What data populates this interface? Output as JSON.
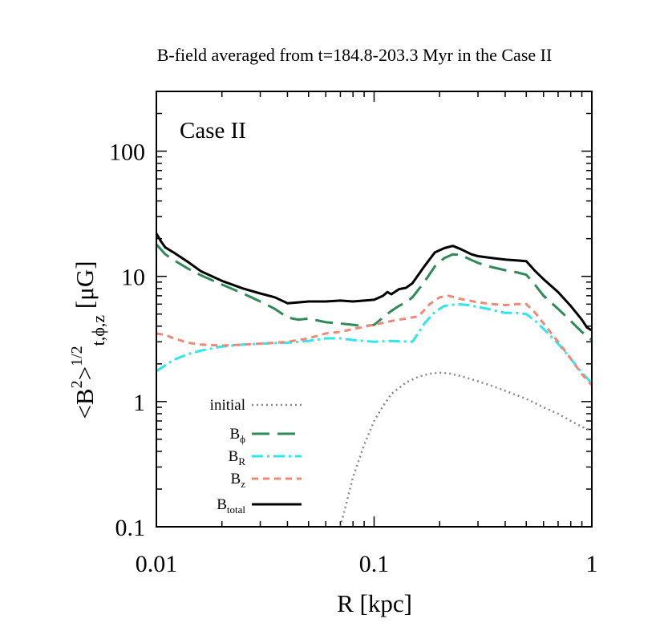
{
  "chart_data": {
    "type": "line",
    "title": "B-field averaged from t=184.8-203.3 Myr in the Case II",
    "panel_label": "Case II",
    "xlabel": "R [kpc]",
    "ylabel": {
      "base": "<B",
      "sq": "2",
      "mid": ">",
      "exp": "1/2",
      "sub": "t,ϕ,z",
      "unit": " [μG]"
    },
    "xscale": "log",
    "yscale": "log",
    "xlim": [
      0.01,
      1
    ],
    "ylim": [
      0.1,
      300
    ],
    "x_ticks": [
      {
        "v": 0.01,
        "label": "0.01"
      },
      {
        "v": 0.1,
        "label": "0.1"
      },
      {
        "v": 1,
        "label": "1"
      }
    ],
    "y_ticks": [
      {
        "v": 0.1,
        "label": "0.1"
      },
      {
        "v": 1,
        "label": "1"
      },
      {
        "v": 10,
        "label": "10"
      },
      {
        "v": 100,
        "label": "100"
      }
    ],
    "grid": false,
    "legend_position": "bottom-left",
    "series": [
      {
        "key": "initial",
        "name": "initial",
        "name_sub": "",
        "color": "#888888",
        "dash": "2,4",
        "width": 2.5,
        "x": [
          0.07,
          0.075,
          0.08,
          0.09,
          0.1,
          0.11,
          0.12,
          0.14,
          0.16,
          0.18,
          0.2,
          0.22,
          0.25,
          0.3,
          0.35,
          0.4,
          0.5,
          0.6,
          0.7,
          0.8,
          0.9,
          1.0
        ],
        "y": [
          0.1,
          0.16,
          0.25,
          0.45,
          0.7,
          0.92,
          1.15,
          1.42,
          1.58,
          1.67,
          1.7,
          1.68,
          1.6,
          1.45,
          1.33,
          1.22,
          1.05,
          0.9,
          0.8,
          0.7,
          0.63,
          0.58
        ]
      },
      {
        "key": "bphi",
        "name": "B",
        "name_sub": "ϕ",
        "color": "#2e8b57",
        "dash": "22,10",
        "width": 3,
        "x": [
          0.01,
          0.011,
          0.012,
          0.014,
          0.016,
          0.02,
          0.025,
          0.03,
          0.035,
          0.04,
          0.045,
          0.05,
          0.06,
          0.07,
          0.08,
          0.09,
          0.1,
          0.11,
          0.12,
          0.13,
          0.14,
          0.15,
          0.17,
          0.19,
          0.21,
          0.23,
          0.25,
          0.28,
          0.3,
          0.35,
          0.4,
          0.45,
          0.5,
          0.55,
          0.6,
          0.7,
          0.8,
          0.9,
          1.0
        ],
        "y": [
          18,
          15,
          13.5,
          11.5,
          10.2,
          8.6,
          7.3,
          6.3,
          5.5,
          4.7,
          4.5,
          4.6,
          4.3,
          4.2,
          4.1,
          4.0,
          4.1,
          4.7,
          5.3,
          5.8,
          6.2,
          6.8,
          9,
          12,
          14,
          15,
          14.8,
          13.5,
          12.8,
          11.8,
          11.2,
          10.8,
          10.3,
          8.5,
          7,
          5.5,
          4.4,
          3.6,
          3.1
        ]
      },
      {
        "key": "br",
        "name": "B",
        "name_sub": "R",
        "color": "#2ee6ee",
        "dash": "14,5,3,5",
        "width": 3,
        "x": [
          0.01,
          0.011,
          0.012,
          0.014,
          0.016,
          0.02,
          0.025,
          0.03,
          0.04,
          0.05,
          0.06,
          0.07,
          0.08,
          0.1,
          0.12,
          0.15,
          0.17,
          0.19,
          0.21,
          0.24,
          0.27,
          0.3,
          0.35,
          0.4,
          0.45,
          0.5,
          0.55,
          0.6,
          0.7,
          0.8,
          0.9,
          1.0
        ],
        "y": [
          1.75,
          1.95,
          2.15,
          2.4,
          2.55,
          2.75,
          2.85,
          2.9,
          2.95,
          3.05,
          3.2,
          3.2,
          3.1,
          3.0,
          3.05,
          3.0,
          4.2,
          5.2,
          5.8,
          6.0,
          5.9,
          5.7,
          5.4,
          5.1,
          5.1,
          5.0,
          4.4,
          3.8,
          2.9,
          2.2,
          1.7,
          1.4
        ]
      },
      {
        "key": "bz",
        "name": "B",
        "name_sub": "z",
        "color": "#f08878",
        "dash": "8,6",
        "width": 3,
        "x": [
          0.01,
          0.011,
          0.012,
          0.014,
          0.016,
          0.02,
          0.025,
          0.03,
          0.035,
          0.04,
          0.05,
          0.06,
          0.07,
          0.08,
          0.1,
          0.12,
          0.14,
          0.16,
          0.18,
          0.2,
          0.22,
          0.25,
          0.3,
          0.35,
          0.4,
          0.45,
          0.5,
          0.55,
          0.6,
          0.7,
          0.8,
          0.9,
          1.0
        ],
        "y": [
          3.5,
          3.4,
          3.2,
          2.95,
          2.85,
          2.8,
          2.85,
          2.9,
          2.95,
          3.0,
          3.2,
          3.5,
          3.6,
          3.8,
          4.1,
          4.4,
          4.6,
          4.8,
          6.0,
          6.8,
          7.0,
          6.6,
          6.2,
          6.0,
          5.9,
          6.0,
          6.0,
          5.1,
          4.2,
          3.0,
          2.2,
          1.65,
          1.35
        ]
      },
      {
        "key": "btotal",
        "name": "B",
        "name_sub": "total",
        "color": "#000000",
        "dash": "",
        "width": 3,
        "x": [
          0.01,
          0.0105,
          0.011,
          0.012,
          0.014,
          0.016,
          0.02,
          0.025,
          0.03,
          0.035,
          0.04,
          0.045,
          0.05,
          0.06,
          0.07,
          0.08,
          0.09,
          0.1,
          0.11,
          0.115,
          0.12,
          0.13,
          0.14,
          0.15,
          0.17,
          0.19,
          0.21,
          0.23,
          0.25,
          0.28,
          0.3,
          0.35,
          0.4,
          0.45,
          0.5,
          0.55,
          0.6,
          0.7,
          0.8,
          0.9,
          0.95,
          1.0
        ],
        "y": [
          22,
          19,
          17,
          15.5,
          13,
          11,
          9.2,
          8.0,
          7.3,
          6.8,
          6.1,
          6.2,
          6.3,
          6.3,
          6.4,
          6.3,
          6.4,
          6.5,
          7.0,
          7.5,
          7.2,
          7.9,
          8.1,
          8.8,
          12,
          15.5,
          16.8,
          17.5,
          16.5,
          15,
          14.5,
          14,
          13.6,
          13.4,
          13.2,
          11,
          9.5,
          7.5,
          5.8,
          4.5,
          3.9,
          3.7
        ]
      }
    ]
  }
}
